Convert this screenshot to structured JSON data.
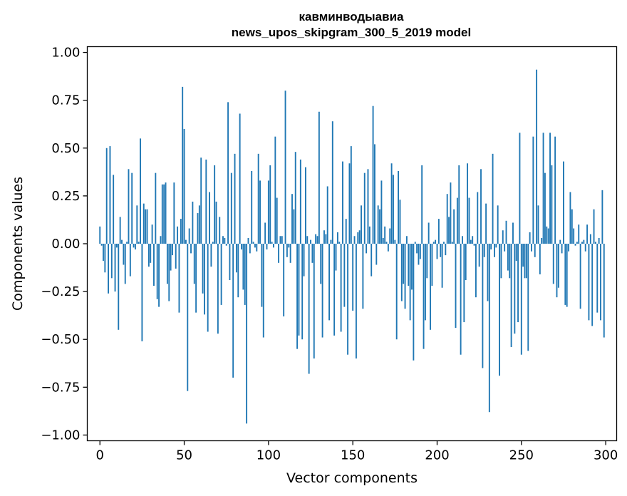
{
  "chart_data": {
    "type": "bar",
    "title_line1": "кавминводыавиа",
    "title_line2": "news_upos_skipgram_300_5_2019 model",
    "xlabel": "Vector components",
    "ylabel": "Components values",
    "xlim": [
      -7.5,
      306.5
    ],
    "ylim": [
      -1.03,
      1.03
    ],
    "xticks": [
      0,
      50,
      100,
      150,
      200,
      250,
      300
    ],
    "xtick_labels": [
      "0",
      "50",
      "100",
      "150",
      "200",
      "250",
      "300"
    ],
    "yticks": [
      1.0,
      0.75,
      0.5,
      0.25,
      0.0,
      -0.25,
      -0.5,
      -0.75,
      -1.0
    ],
    "ytick_labels": [
      "1.00",
      "0.75",
      "0.50",
      "0.25",
      "0.00",
      "−0.25",
      "−0.50",
      "−0.75",
      "−1.00"
    ],
    "bar_color": "#1f77b4",
    "grid": false,
    "values": [
      0.09,
      -0.01,
      -0.09,
      -0.15,
      0.5,
      -0.26,
      0.51,
      -0.18,
      0.36,
      -0.25,
      -0.02,
      -0.45,
      0.14,
      0.02,
      -0.11,
      -0.21,
      0.01,
      0.39,
      -0.17,
      0.37,
      -0.02,
      -0.03,
      0.2,
      0.01,
      0.55,
      -0.51,
      0.21,
      0.18,
      0.18,
      -0.12,
      -0.1,
      0.1,
      -0.22,
      0.37,
      -0.29,
      -0.33,
      0.04,
      0.31,
      0.31,
      0.32,
      -0.21,
      -0.3,
      -0.14,
      -0.06,
      0.32,
      -0.13,
      0.09,
      -0.36,
      0.13,
      0.82,
      0.6,
      0.02,
      -0.77,
      0.08,
      -0.05,
      0.22,
      -0.21,
      -0.36,
      0.16,
      0.2,
      0.45,
      -0.26,
      -0.37,
      0.44,
      -0.46,
      0.27,
      -0.12,
      0.01,
      0.41,
      0.22,
      -0.47,
      0.14,
      -0.32,
      0.04,
      0.03,
      -0.01,
      0.74,
      -0.19,
      0.37,
      -0.7,
      0.47,
      -0.15,
      -0.28,
      0.68,
      -0.03,
      -0.24,
      -0.32,
      -0.94,
      0.03,
      -0.05,
      0.38,
      0.01,
      -0.02,
      -0.04,
      0.47,
      0.33,
      -0.33,
      -0.49,
      0.11,
      -0.03,
      0.33,
      0.41,
      0.01,
      -0.02,
      0.56,
      0.24,
      -0.1,
      0.04,
      0.04,
      -0.38,
      0.8,
      -0.07,
      -0.02,
      -0.1,
      0.26,
      0.18,
      0.48,
      -0.55,
      -0.48,
      0.44,
      -0.5,
      -0.17,
      0.4,
      0.04,
      -0.68,
      0.02,
      -0.1,
      -0.6,
      0.05,
      0.04,
      0.69,
      -0.21,
      -0.49,
      0.07,
      0.05,
      0.3,
      -0.4,
      0.02,
      0.64,
      -0.48,
      -0.14,
      0.06,
      0.01,
      -0.46,
      0.43,
      -0.33,
      0.13,
      -0.58,
      0.42,
      0.51,
      -0.35,
      0.04,
      -0.6,
      0.06,
      0.07,
      0.2,
      -0.34,
      0.37,
      -0.05,
      0.39,
      0.09,
      -0.17,
      0.72,
      0.52,
      -0.11,
      0.2,
      0.18,
      0.33,
      0.03,
      0.09,
      0.01,
      -0.04,
      0.08,
      0.42,
      0.36,
      0.02,
      -0.5,
      0.38,
      0.23,
      -0.3,
      -0.21,
      -0.34,
      0.04,
      -0.22,
      -0.4,
      -0.24,
      -0.61,
      0.01,
      -0.05,
      -0.11,
      -0.08,
      0.41,
      -0.55,
      -0.4,
      -0.18,
      0.11,
      -0.45,
      -0.22,
      0.01,
      0.02,
      -0.08,
      0.13,
      -0.07,
      -0.23,
      0.01,
      -0.06,
      0.26,
      0.14,
      0.32,
      0.01,
      0.18,
      -0.44,
      0.24,
      0.41,
      -0.58,
      0.04,
      -0.41,
      -0.19,
      0.42,
      0.24,
      0.02,
      0.04,
      -0.01,
      -0.28,
      0.27,
      -0.12,
      0.39,
      -0.65,
      -0.07,
      0.21,
      -0.3,
      -0.88,
      -0.03,
      0.47,
      -0.07,
      -0.02,
      0.2,
      -0.69,
      -0.18,
      0.07,
      -0.04,
      0.12,
      -0.14,
      -0.18,
      -0.54,
      0.11,
      -0.47,
      -0.09,
      -0.41,
      0.58,
      -0.58,
      -0.12,
      -0.18,
      -0.18,
      -0.56,
      0.06,
      -0.04,
      0.56,
      -0.07,
      0.91,
      0.2,
      -0.16,
      0.03,
      0.58,
      0.37,
      0.09,
      0.08,
      0.58,
      0.41,
      -0.21,
      0.56,
      -0.28,
      -0.23,
      0.02,
      -0.05,
      0.43,
      -0.32,
      -0.33,
      -0.04,
      0.27,
      0.18,
      0.08,
      -0.01,
      0.01,
      0.1,
      -0.34,
      0.01,
      0.02,
      -0.04,
      0.1,
      -0.4,
      0.05,
      -0.43,
      0.18,
      0.01,
      -0.36,
      0.03,
      -0.4,
      0.28,
      -0.49
    ]
  }
}
